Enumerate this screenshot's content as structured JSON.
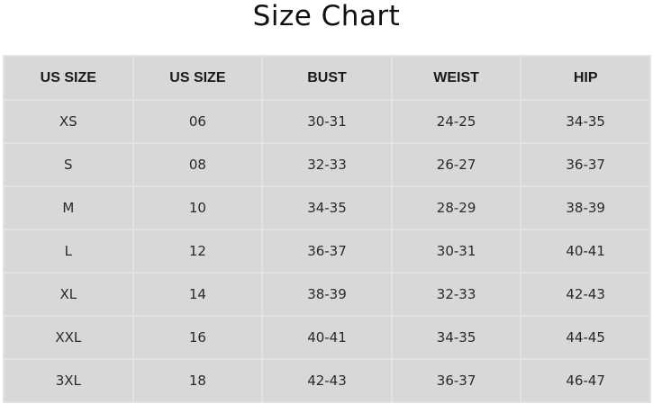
{
  "page": {
    "title": "Size Chart"
  },
  "table": {
    "headers": [
      "US SIZE",
      "US SIZE",
      "BUST",
      "WEIST",
      "HIP"
    ],
    "rows": [
      [
        "XS",
        "06",
        "30-31",
        "24-25",
        "34-35"
      ],
      [
        "S",
        "08",
        "32-33",
        "26-27",
        "36-37"
      ],
      [
        "M",
        "10",
        "34-35",
        "28-29",
        "38-39"
      ],
      [
        "L",
        "12",
        "36-37",
        "30-31",
        "40-41"
      ],
      [
        "XL",
        "14",
        "38-39",
        "32-33",
        "42-43"
      ],
      [
        "XXL",
        "16",
        "40-41",
        "34-35",
        "44-45"
      ],
      [
        "3XL",
        "18",
        "42-43",
        "36-37",
        "46-47"
      ]
    ]
  }
}
